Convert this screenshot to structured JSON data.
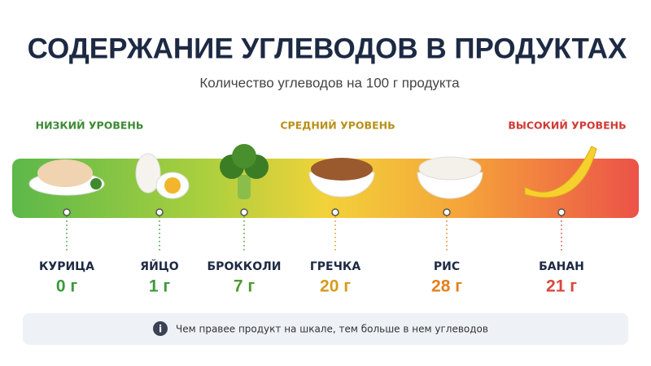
{
  "header": {
    "title": "СОДЕРЖАНИЕ УГЛЕВОДОВ В ПРОДУКТАХ",
    "subtitle": "Количество углеводов на 100 г продукта"
  },
  "levels": [
    "НИЗКИЙ УРОВЕНЬ",
    "СРЕДНИЙ УРОВЕНЬ",
    "ВЫСОКИЙ УРОВЕНЬ"
  ],
  "items": [
    {
      "name": "КУРИЦА",
      "value": "0 г"
    },
    {
      "name": "ЯЙЦО",
      "value": "1 г"
    },
    {
      "name": "БРОККОЛИ",
      "value": "7 г"
    },
    {
      "name": "ГРЕЧКА",
      "value": "20 г"
    },
    {
      "name": "РИС",
      "value": "28 г"
    },
    {
      "name": "БАНАН",
      "value": "21 г"
    }
  ],
  "note": "Чем правее продукт на шкале, тем больше в нем углеводов"
}
